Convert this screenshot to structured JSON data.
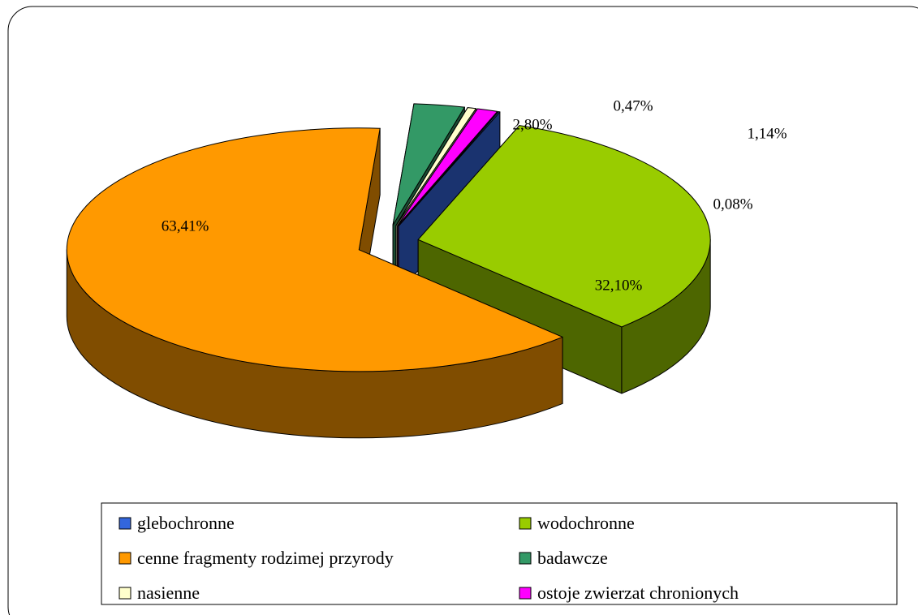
{
  "chart_data": {
    "type": "pie3d",
    "categories": [
      "glebochronne",
      "wodochronne",
      "cenne fragmenty rodzimej  przyrody",
      "badawcze",
      "nasienne",
      "ostoje zwierzat chronionych"
    ],
    "values": [
      0.08,
      32.1,
      63.41,
      2.8,
      0.47,
      1.14
    ],
    "value_labels": [
      "0,08%",
      "32,10%",
      "63,41%",
      "2,80%",
      "0,47%",
      "1,14%"
    ],
    "colors": [
      "#3366dd",
      "#99cc00",
      "#ff9900",
      "#339966",
      "#ffffcc",
      "#ff00ff"
    ],
    "legend": "bottom"
  }
}
